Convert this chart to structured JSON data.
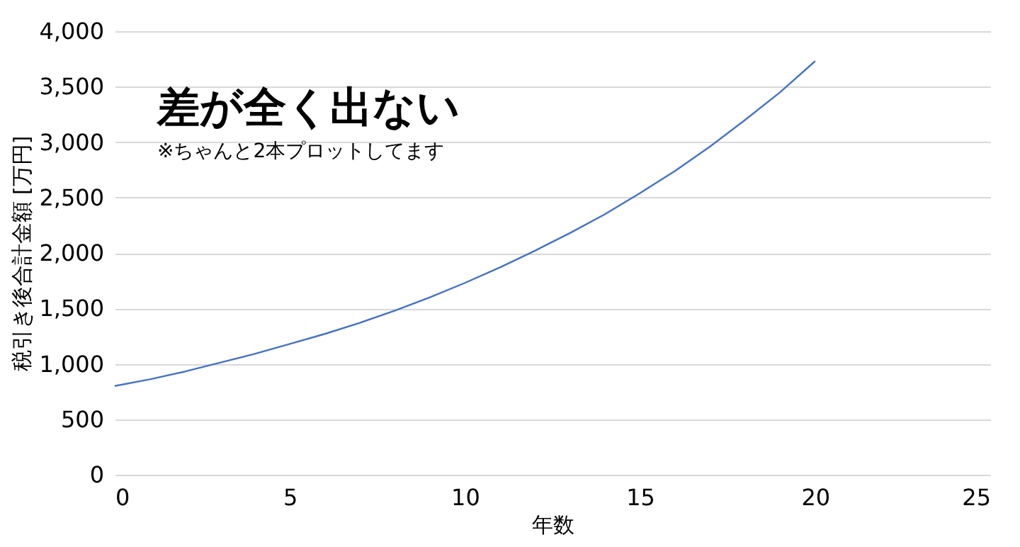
{
  "chart_data": {
    "type": "line",
    "title": "差が全く出ない",
    "subtitle": "※ちゃんと2本プロットしてます",
    "xlabel": "年数",
    "ylabel": "税引き後合計金額 [万円]",
    "x": [
      0,
      1,
      2,
      3,
      4,
      5,
      6,
      7,
      8,
      9,
      10,
      11,
      12,
      13,
      14,
      15,
      16,
      17,
      18,
      19,
      20
    ],
    "series": [
      {
        "color": "#4472c4",
        "values": [
          800,
          860,
          930,
          1010,
          1090,
          1180,
          1270,
          1370,
          1480,
          1600,
          1730,
          1870,
          2020,
          2180,
          2350,
          2540,
          2740,
          2960,
          3200,
          3450,
          3730
        ]
      }
    ],
    "xlim": [
      0,
      25
    ],
    "xticks": [
      0,
      5,
      10,
      15,
      20,
      25
    ],
    "ylim": [
      0,
      4000
    ],
    "yticks": [
      0,
      {
        "value": 500,
        "label": "500"
      },
      {
        "value": 1000,
        "label": "1,000"
      },
      {
        "value": 1500,
        "label": "1,500"
      },
      {
        "value": 2000,
        "label": "2,000"
      },
      {
        "value": 2500,
        "label": "2,500"
      },
      {
        "value": 3000,
        "label": "3,000"
      },
      {
        "value": 3500,
        "label": "3,500"
      },
      {
        "value": 4000,
        "label": "4,000"
      }
    ],
    "grid": "y"
  }
}
